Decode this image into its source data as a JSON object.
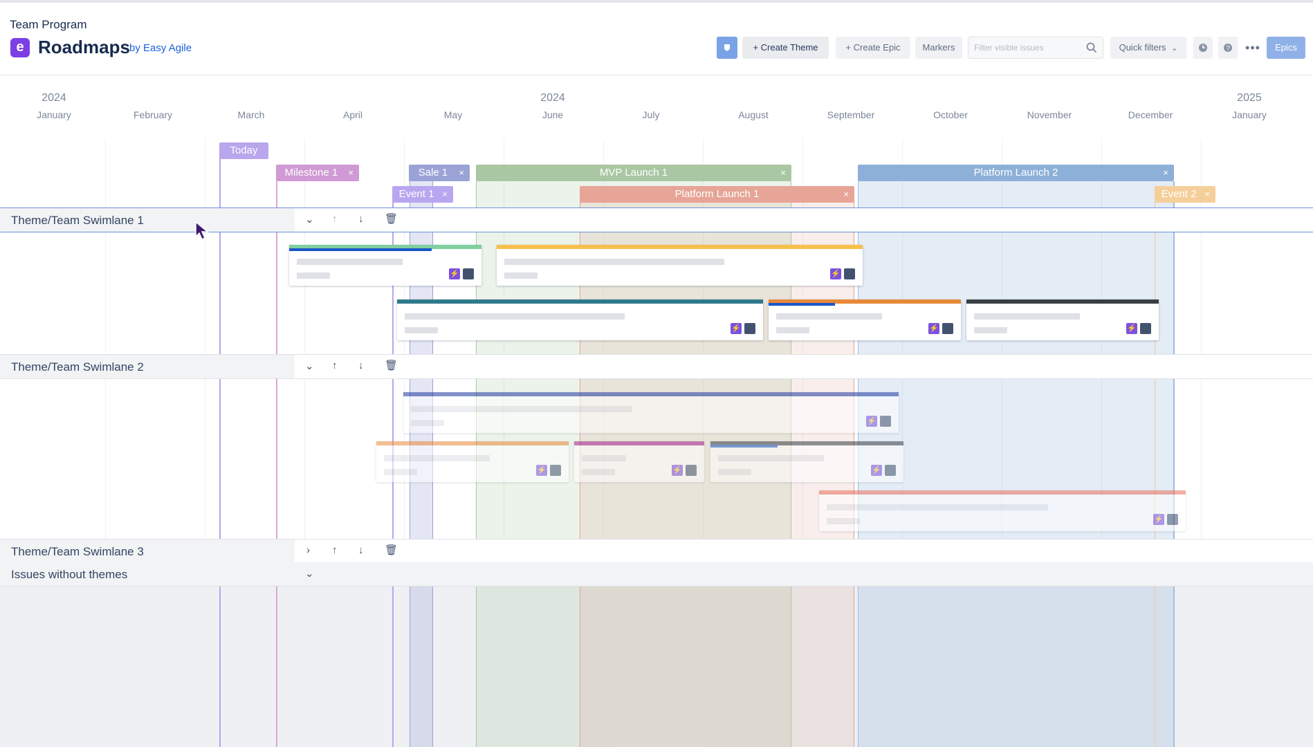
{
  "header": {
    "breadcrumb": "Team Program",
    "logo_letter": "e",
    "title": "Roadmaps",
    "by_line": "by Easy Agile",
    "toolbar": {
      "create_theme": "+  Create Theme",
      "create_epic": "+  Create Epic",
      "markers": "Markers",
      "filter_placeholder": "Filter visible issues",
      "quick_filters": "Quick filters",
      "epics": "Epics"
    }
  },
  "timeline": {
    "years": [
      {
        "label": "2024"
      },
      {
        "label": "2024"
      },
      {
        "label": "2025"
      }
    ],
    "months": [
      "January",
      "February",
      "March",
      "April",
      "May",
      "June",
      "July",
      "August",
      "September",
      "October",
      "November",
      "December",
      "January"
    ]
  },
  "markers": {
    "today": "Today",
    "milestone1": "Milestone 1",
    "sale1": "Sale 1",
    "mvp_launch1": "MVP Launch 1",
    "platform_launch2": "Platform Launch 2",
    "event1": "Event 1",
    "platform_launch1": "Platform Launch 1",
    "event2": "Event 2",
    "close": "×"
  },
  "swimlanes": {
    "lane1": "Theme/Team Swimlane 1",
    "lane2": "Theme/Team Swimlane 2",
    "lane3": "Theme/Team Swimlane 3",
    "no_theme": "Issues without themes"
  },
  "icons": {
    "collapse": "chevron-down-icon",
    "expand": "chevron-right-icon",
    "up": "arrow-up-icon",
    "down": "arrow-down-icon",
    "delete": "trash-icon",
    "lightning": "lightning-icon"
  },
  "colors": {
    "accent": "#7b3fe4",
    "link": "#1a61d6",
    "epics_button": "#8fb1e8"
  }
}
